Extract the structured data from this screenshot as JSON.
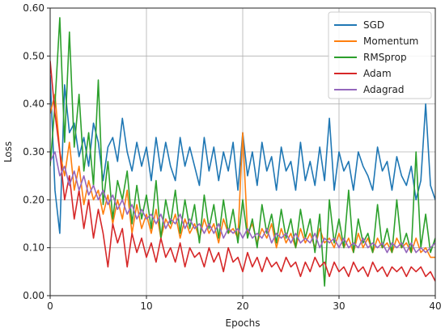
{
  "chart_data": {
    "type": "line",
    "xlabel": "Epochs",
    "ylabel": "Loss",
    "xlim": [
      0,
      40
    ],
    "ylim": [
      0.0,
      0.6
    ],
    "x_ticks": [
      0,
      10,
      20,
      30,
      40
    ],
    "y_ticks": [
      0.0,
      0.1,
      0.2,
      0.3,
      0.4,
      0.5,
      0.6
    ],
    "x_tick_labels": [
      "0",
      "10",
      "20",
      "30",
      "40"
    ],
    "y_tick_labels": [
      "0.00",
      "0.10",
      "0.20",
      "0.30",
      "0.40",
      "0.50",
      "0.60"
    ],
    "grid": true,
    "legend_position": "top-right",
    "x": [
      0.0,
      0.5,
      1.0,
      1.5,
      2.0,
      2.5,
      3.0,
      3.5,
      4.0,
      4.5,
      5.0,
      5.5,
      6.0,
      6.5,
      7.0,
      7.5,
      8.0,
      8.5,
      9.0,
      9.5,
      10.0,
      10.5,
      11.0,
      11.5,
      12.0,
      12.5,
      13.0,
      13.5,
      14.0,
      14.5,
      15.0,
      15.5,
      16.0,
      16.5,
      17.0,
      17.5,
      18.0,
      18.5,
      19.0,
      19.5,
      20.0,
      20.5,
      21.0,
      21.5,
      22.0,
      22.5,
      23.0,
      23.5,
      24.0,
      24.5,
      25.0,
      25.5,
      26.0,
      26.5,
      27.0,
      27.5,
      28.0,
      28.5,
      29.0,
      29.5,
      30.0,
      30.5,
      31.0,
      31.5,
      32.0,
      32.5,
      33.0,
      33.5,
      34.0,
      34.5,
      35.0,
      35.5,
      36.0,
      36.5,
      37.0,
      37.5,
      38.0,
      38.5,
      39.0,
      39.5,
      40.0
    ],
    "series": [
      {
        "name": "SGD",
        "color": "#1f77b4",
        "values": [
          0.46,
          0.22,
          0.13,
          0.44,
          0.34,
          0.36,
          0.29,
          0.33,
          0.27,
          0.36,
          0.32,
          0.24,
          0.31,
          0.33,
          0.28,
          0.37,
          0.3,
          0.26,
          0.32,
          0.27,
          0.31,
          0.24,
          0.33,
          0.26,
          0.32,
          0.27,
          0.24,
          0.33,
          0.27,
          0.31,
          0.27,
          0.23,
          0.33,
          0.26,
          0.31,
          0.24,
          0.3,
          0.26,
          0.32,
          0.22,
          0.34,
          0.25,
          0.3,
          0.23,
          0.32,
          0.26,
          0.29,
          0.22,
          0.31,
          0.26,
          0.28,
          0.22,
          0.32,
          0.24,
          0.28,
          0.23,
          0.31,
          0.24,
          0.37,
          0.22,
          0.3,
          0.26,
          0.28,
          0.22,
          0.3,
          0.27,
          0.25,
          0.22,
          0.31,
          0.26,
          0.28,
          0.22,
          0.29,
          0.25,
          0.23,
          0.27,
          0.2,
          0.24,
          0.4,
          0.23,
          0.2
        ]
      },
      {
        "name": "Momentum",
        "color": "#ff7f0e",
        "values": [
          0.38,
          0.42,
          0.3,
          0.25,
          0.32,
          0.22,
          0.27,
          0.19,
          0.24,
          0.2,
          0.22,
          0.17,
          0.21,
          0.15,
          0.2,
          0.16,
          0.22,
          0.13,
          0.19,
          0.14,
          0.17,
          0.13,
          0.18,
          0.12,
          0.16,
          0.14,
          0.17,
          0.12,
          0.16,
          0.13,
          0.15,
          0.12,
          0.16,
          0.13,
          0.15,
          0.11,
          0.16,
          0.13,
          0.14,
          0.12,
          0.34,
          0.13,
          0.15,
          0.11,
          0.14,
          0.12,
          0.15,
          0.1,
          0.14,
          0.11,
          0.13,
          0.1,
          0.14,
          0.11,
          0.13,
          0.1,
          0.14,
          0.11,
          0.12,
          0.1,
          0.13,
          0.1,
          0.12,
          0.09,
          0.13,
          0.1,
          0.12,
          0.09,
          0.12,
          0.1,
          0.11,
          0.09,
          0.12,
          0.1,
          0.11,
          0.09,
          0.12,
          0.09,
          0.1,
          0.08,
          0.08
        ]
      },
      {
        "name": "RMSprop",
        "color": "#2ca02c",
        "values": [
          0.27,
          0.4,
          0.58,
          0.32,
          0.55,
          0.31,
          0.42,
          0.26,
          0.34,
          0.23,
          0.45,
          0.19,
          0.28,
          0.16,
          0.24,
          0.2,
          0.26,
          0.15,
          0.23,
          0.16,
          0.21,
          0.14,
          0.24,
          0.12,
          0.2,
          0.15,
          0.22,
          0.13,
          0.2,
          0.14,
          0.19,
          0.11,
          0.21,
          0.14,
          0.19,
          0.12,
          0.2,
          0.13,
          0.18,
          0.11,
          0.2,
          0.12,
          0.16,
          0.1,
          0.19,
          0.13,
          0.17,
          0.11,
          0.18,
          0.12,
          0.16,
          0.1,
          0.18,
          0.12,
          0.16,
          0.09,
          0.17,
          0.02,
          0.2,
          0.11,
          0.16,
          0.1,
          0.22,
          0.09,
          0.16,
          0.11,
          0.13,
          0.09,
          0.19,
          0.1,
          0.14,
          0.09,
          0.2,
          0.1,
          0.13,
          0.09,
          0.3,
          0.1,
          0.17,
          0.09,
          0.12
        ]
      },
      {
        "name": "Adam",
        "color": "#d62728",
        "values": [
          0.49,
          0.38,
          0.3,
          0.2,
          0.25,
          0.16,
          0.22,
          0.14,
          0.2,
          0.12,
          0.18,
          0.13,
          0.06,
          0.15,
          0.11,
          0.14,
          0.06,
          0.13,
          0.09,
          0.12,
          0.08,
          0.11,
          0.07,
          0.12,
          0.08,
          0.1,
          0.07,
          0.11,
          0.06,
          0.1,
          0.08,
          0.09,
          0.06,
          0.1,
          0.07,
          0.09,
          0.05,
          0.1,
          0.07,
          0.08,
          0.05,
          0.09,
          0.06,
          0.08,
          0.05,
          0.08,
          0.06,
          0.07,
          0.05,
          0.08,
          0.06,
          0.07,
          0.04,
          0.07,
          0.05,
          0.08,
          0.06,
          0.07,
          0.04,
          0.07,
          0.05,
          0.06,
          0.04,
          0.07,
          0.05,
          0.06,
          0.04,
          0.07,
          0.05,
          0.06,
          0.04,
          0.06,
          0.05,
          0.06,
          0.04,
          0.06,
          0.05,
          0.06,
          0.04,
          0.05,
          0.03
        ]
      },
      {
        "name": "Adagrad",
        "color": "#9467bd",
        "values": [
          0.28,
          0.3,
          0.25,
          0.27,
          0.23,
          0.26,
          0.22,
          0.25,
          0.21,
          0.23,
          0.2,
          0.22,
          0.19,
          0.21,
          0.18,
          0.2,
          0.17,
          0.19,
          0.16,
          0.18,
          0.16,
          0.17,
          0.15,
          0.17,
          0.14,
          0.16,
          0.15,
          0.17,
          0.14,
          0.16,
          0.14,
          0.15,
          0.13,
          0.15,
          0.13,
          0.15,
          0.12,
          0.14,
          0.13,
          0.14,
          0.12,
          0.14,
          0.12,
          0.13,
          0.12,
          0.14,
          0.11,
          0.13,
          0.12,
          0.13,
          0.11,
          0.13,
          0.11,
          0.12,
          0.11,
          0.13,
          0.1,
          0.12,
          0.11,
          0.12,
          0.1,
          0.12,
          0.1,
          0.11,
          0.1,
          0.12,
          0.1,
          0.11,
          0.1,
          0.11,
          0.09,
          0.11,
          0.1,
          0.11,
          0.09,
          0.11,
          0.09,
          0.1,
          0.09,
          0.1,
          0.11
        ]
      }
    ]
  }
}
